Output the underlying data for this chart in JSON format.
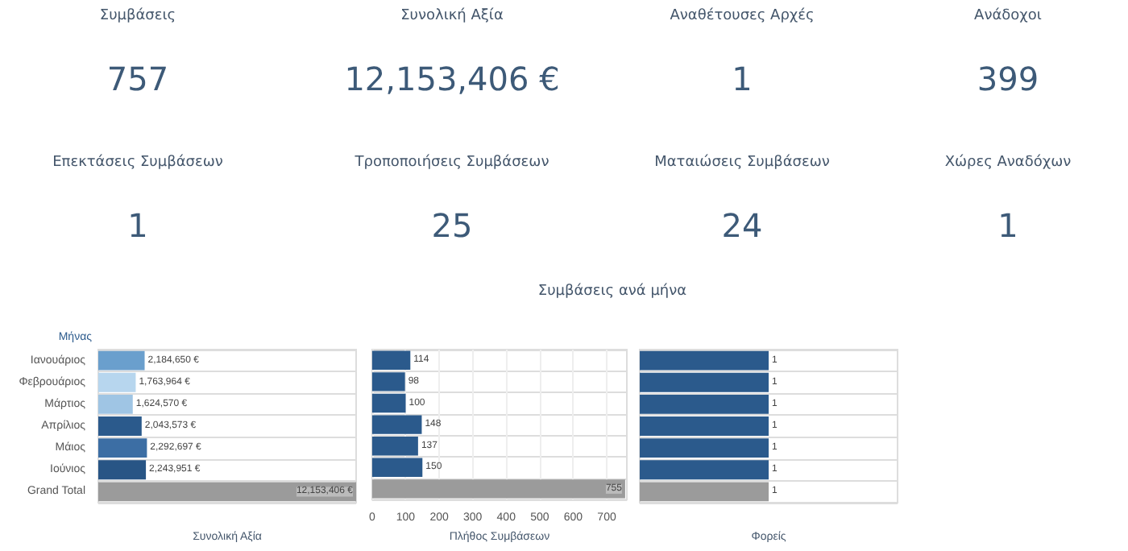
{
  "chart_data": [
    {
      "type": "other",
      "categories": [
        "Συμβάσεις",
        "Συνολική Αξία",
        "Αναθέτουσες Αρχές",
        "Ανάδοχοι",
        "Επεκτάσεις Συμβάσεων",
        "Τροποποιήσεις Συμβάσεων",
        "Ματαιώσεις Συμβάσεων",
        "Χώρες Αναδόχων"
      ],
      "value_labels": [
        "757",
        "12,153,406 €",
        "1",
        "399",
        "1",
        "25",
        "24",
        "1"
      ]
    },
    {
      "type": "bar",
      "orientation": "horizontal",
      "ylabel": "Μήνας",
      "xlabel": "Συνολική Αξία",
      "categories": [
        "Ιανουάριος",
        "Φεβρουάριος",
        "Μάρτιος",
        "Απρίλιος",
        "Μάιος",
        "Ιούνιος",
        "Grand Total"
      ],
      "values": [
        2184650,
        1763964,
        1624570,
        2043573,
        2292697,
        2243951,
        12153406
      ],
      "colors": [
        "#6a9fcd",
        "#b7d6ee",
        "#9fc5e4",
        "#2b5a8c",
        "#3c6ea4",
        "#285585",
        "#9b9b9b"
      ],
      "value_labels": [
        "2,184,650 €",
        "1,763,964 €",
        "1,624,570 €",
        "2,043,573 €",
        "2,292,697 €",
        "2,243,951 €",
        "12,153,406 €"
      ],
      "grid": "y",
      "tick_labels": "y"
    },
    {
      "type": "bar",
      "orientation": "horizontal",
      "title": "Συμβάσεις ανά μήνα",
      "xlabel": "Πλήθος Συμβάσεων",
      "categories": [
        null,
        null,
        null,
        null,
        null,
        null,
        null
      ],
      "values": [
        114,
        98,
        100,
        148,
        137,
        150,
        755
      ],
      "colors": [
        "#2b5a8c",
        "#2b5a8c",
        "#2b5a8c",
        "#2b5a8c",
        "#2b5a8c",
        "#2b5a8c",
        "#9b9b9b"
      ],
      "xlim": [
        0,
        760
      ],
      "xticks": [
        0,
        100,
        200,
        300,
        400,
        500,
        600,
        700
      ],
      "data_labels": true,
      "grid": true,
      "tick_labels": "x"
    },
    {
      "type": "bar",
      "orientation": "horizontal",
      "xlabel": "Φορείς",
      "categories": [
        null,
        null,
        null,
        null,
        null,
        null,
        null
      ],
      "values": [
        1,
        1,
        1,
        1,
        1,
        1,
        1
      ],
      "colors": [
        "#2b5a8c",
        "#2b5a8c",
        "#2b5a8c",
        "#2b5a8c",
        "#2b5a8c",
        "#2b5a8c",
        "#9b9b9b"
      ],
      "data_labels": true,
      "grid": "y",
      "tick_labels": false
    }
  ]
}
